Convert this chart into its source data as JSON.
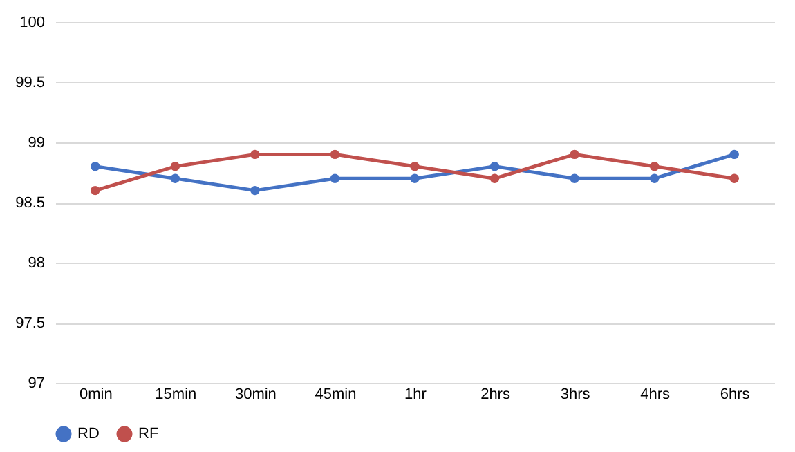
{
  "chart_data": {
    "type": "line",
    "categories": [
      "0min",
      "15min",
      "30min",
      "45min",
      "1hr",
      "2hrs",
      "3hrs",
      "4hrs",
      "6hrs"
    ],
    "series": [
      {
        "name": "RD",
        "color": "#4472c4",
        "values": [
          98.8,
          98.7,
          98.6,
          98.7,
          98.7,
          98.8,
          98.7,
          98.7,
          98.9
        ]
      },
      {
        "name": "RF",
        "color": "#c0504d",
        "values": [
          98.6,
          98.8,
          98.9,
          98.9,
          98.8,
          98.7,
          98.9,
          98.8,
          98.7
        ]
      }
    ],
    "ylim": [
      97,
      100
    ],
    "yticks": [
      97,
      97.5,
      98,
      98.5,
      99,
      99.5,
      100
    ],
    "grid": "y",
    "legend": "bottom",
    "marker": "circle",
    "line_style": "solid"
  }
}
